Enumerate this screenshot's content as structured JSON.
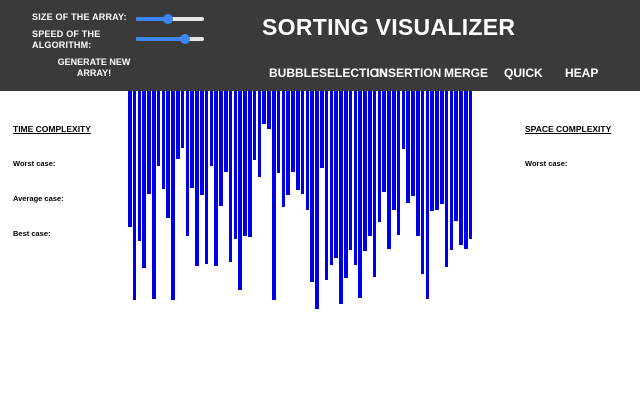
{
  "controls": {
    "size_label": "SIZE OF THE ARRAY:",
    "speed_label": "SPEED OF THE ALGORITHM:",
    "size_value": 0.47,
    "speed_value": 0.72,
    "generate_label": "GENERATE NEW ARRAY!"
  },
  "title": "SORTING VISUALIZER",
  "algorithms": [
    "BUBBLE",
    "SELECTION",
    "INSERTION",
    "MERGE",
    "QUICK",
    "HEAP"
  ],
  "time_complexity": {
    "heading": "TIME COMPLEXITY",
    "worst": "Worst case:",
    "average": "Average case:",
    "best": "Best case:"
  },
  "space_complexity": {
    "heading": "SPACE COMPLEXITY",
    "worst": "Worst case:"
  },
  "colors": {
    "header_bg": "#3a3a3a",
    "bar": "#0000e6",
    "slider": "#3d86f6"
  },
  "array_values": [
    136,
    209,
    150,
    177,
    103,
    208,
    75,
    98,
    127,
    209,
    68,
    57,
    145,
    97,
    175,
    104,
    173,
    75,
    175,
    115,
    81,
    171,
    148,
    199,
    145,
    146,
    69,
    86,
    33,
    38,
    209,
    82,
    116,
    104,
    81,
    99,
    103,
    119,
    191,
    218,
    77,
    189,
    174,
    167,
    213,
    187,
    159,
    174,
    207,
    160,
    145,
    186,
    131,
    101,
    158,
    119,
    144,
    58,
    112,
    105,
    145,
    183,
    208,
    120,
    119,
    113,
    176,
    159,
    130,
    154,
    158,
    148
  ]
}
